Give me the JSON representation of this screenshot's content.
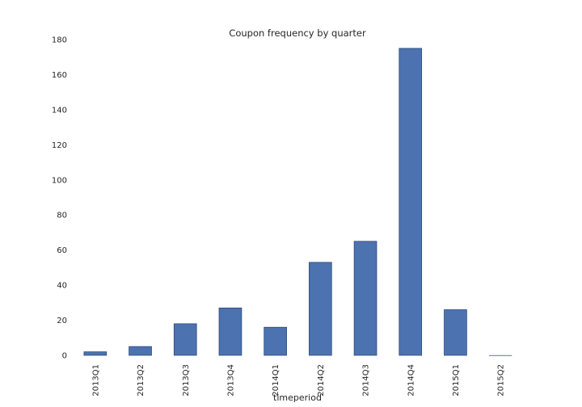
{
  "chart_data": {
    "type": "bar",
    "title": "Coupon frequency by quarter",
    "xlabel": "timeperiod",
    "ylabel": "",
    "categories": [
      "2013Q1",
      "2013Q2",
      "2013Q3",
      "2013Q4",
      "2014Q1",
      "2014Q2",
      "2014Q3",
      "2014Q4",
      "2015Q1",
      "2015Q2"
    ],
    "values": [
      2,
      5,
      18,
      27,
      16,
      53,
      65,
      175,
      26,
      0
    ],
    "ylim": [
      0,
      180
    ],
    "yticks": [
      0,
      20,
      40,
      60,
      80,
      100,
      120,
      140,
      160,
      180
    ],
    "grid": false,
    "legend": "none",
    "bar_color": "#4c72b0",
    "bar_edge_color": "#2f4b7c"
  }
}
